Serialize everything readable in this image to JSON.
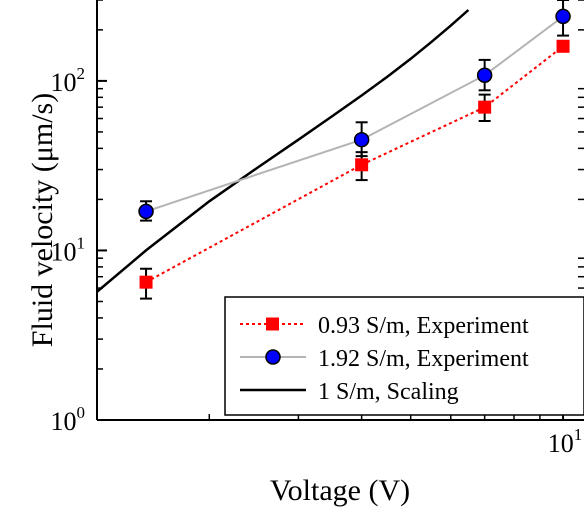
{
  "chart_data": {
    "type": "line",
    "title": "",
    "xlabel": "Voltage (V)",
    "ylabel": "Fluid velocity (μm/s)",
    "x_scale": "log",
    "y_scale": "log",
    "xlim": [
      1.2,
      11
    ],
    "ylim": [
      1,
      300
    ],
    "grid": false,
    "legend_position": "bottom-right",
    "x_ticks": [
      {
        "base": "10",
        "exp": "1",
        "value": 10
      }
    ],
    "y_ticks": [
      {
        "base": "10",
        "exp": "0",
        "value": 1
      },
      {
        "base": "10",
        "exp": "1",
        "value": 10
      },
      {
        "base": "10",
        "exp": "2",
        "value": 100
      }
    ],
    "series": [
      {
        "name": "0.93 S/m, Experiment",
        "color": "#ff0000",
        "line_style": "dotted",
        "marker": "square",
        "x": [
          1.5,
          4,
          7,
          10
        ],
        "y": [
          6.5,
          32,
          70,
          160
        ],
        "err_low": [
          5.2,
          26,
          58,
          150
        ],
        "err_high": [
          7.8,
          38,
          83,
          172
        ]
      },
      {
        "name": "1.92 S/m, Experiment",
        "color": "#0000ff",
        "line_color": "#b4b4b4",
        "line_style": "solid",
        "marker": "circle",
        "x": [
          1.5,
          4,
          7,
          10
        ],
        "y": [
          17,
          45,
          108,
          240
        ],
        "err_low": [
          15,
          36,
          88,
          185
        ],
        "err_high": [
          19.5,
          57,
          133,
          300
        ]
      },
      {
        "name": "1 S/m, Scaling",
        "color": "#000000",
        "line_style": "solid",
        "marker": "none",
        "x": [
          1.2,
          1.5,
          2,
          2.5,
          3,
          3.5,
          4,
          4.5,
          5,
          5.5,
          6,
          6.5
        ],
        "y": [
          5.7,
          10,
          19.5,
          31,
          45,
          62,
          82,
          106,
          135,
          170,
          212,
          262
        ]
      }
    ]
  }
}
